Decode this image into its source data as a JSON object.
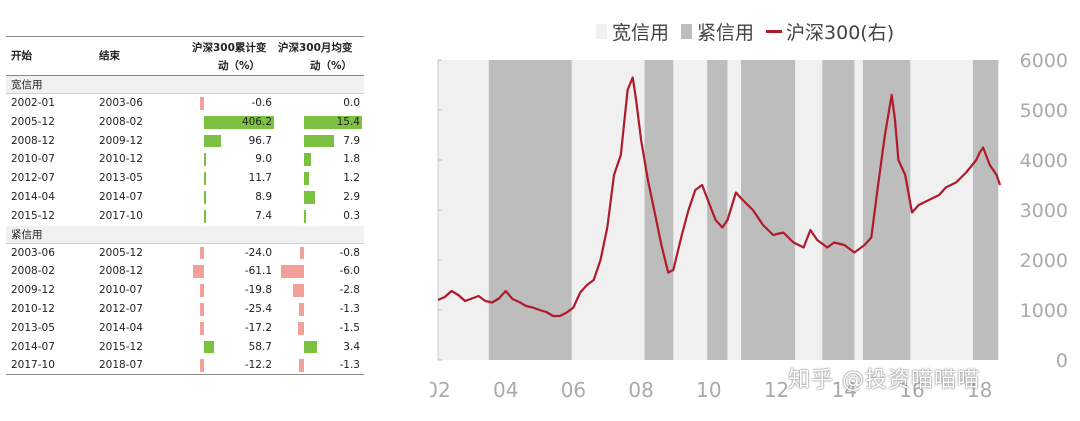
{
  "table": {
    "headers": {
      "start": "开始",
      "end": "结束",
      "cum_change_l1": "沪深300累计变",
      "cum_change_l2": "动（%）",
      "monthly_change_l1": "沪深300月均变",
      "monthly_change_l2": "动（%）"
    },
    "sections": [
      {
        "label": "宽信用",
        "rows": [
          {
            "start": "2002-01",
            "end": "2003-06",
            "cum": "-0.6",
            "cum_v": -0.6,
            "mon": "0.0",
            "mon_v": 0.0
          },
          {
            "start": "2005-12",
            "end": "2008-02",
            "cum": "406.2",
            "cum_v": 406.2,
            "mon": "15.4",
            "mon_v": 15.4
          },
          {
            "start": "2008-12",
            "end": "2009-12",
            "cum": "96.7",
            "cum_v": 96.7,
            "mon": "7.9",
            "mon_v": 7.9
          },
          {
            "start": "2010-07",
            "end": "2010-12",
            "cum": "9.0",
            "cum_v": 9.0,
            "mon": "1.8",
            "mon_v": 1.8
          },
          {
            "start": "2012-07",
            "end": "2013-05",
            "cum": "11.7",
            "cum_v": 11.7,
            "mon": "1.2",
            "mon_v": 1.2
          },
          {
            "start": "2014-04",
            "end": "2014-07",
            "cum": "8.9",
            "cum_v": 8.9,
            "mon": "2.9",
            "mon_v": 2.9
          },
          {
            "start": "2015-12",
            "end": "2017-10",
            "cum": "7.4",
            "cum_v": 7.4,
            "mon": "0.3",
            "mon_v": 0.3
          }
        ]
      },
      {
        "label": "紧信用",
        "rows": [
          {
            "start": "2003-06",
            "end": "2005-12",
            "cum": "-24.0",
            "cum_v": -24.0,
            "mon": "-0.8",
            "mon_v": -0.8
          },
          {
            "start": "2008-02",
            "end": "2008-12",
            "cum": "-61.1",
            "cum_v": -61.1,
            "mon": "-6.0",
            "mon_v": -6.0
          },
          {
            "start": "2009-12",
            "end": "2010-07",
            "cum": "-19.8",
            "cum_v": -19.8,
            "mon": "-2.8",
            "mon_v": -2.8
          },
          {
            "start": "2010-12",
            "end": "2012-07",
            "cum": "-25.4",
            "cum_v": -25.4,
            "mon": "-1.3",
            "mon_v": -1.3
          },
          {
            "start": "2013-05",
            "end": "2014-04",
            "cum": "-17.2",
            "cum_v": -17.2,
            "mon": "-1.5",
            "mon_v": -1.5
          },
          {
            "start": "2014-07",
            "end": "2015-12",
            "cum": "58.7",
            "cum_v": 58.7,
            "mon": "3.4",
            "mon_v": 3.4
          },
          {
            "start": "2017-10",
            "end": "2018-07",
            "cum": "-12.2",
            "cum_v": -12.2,
            "mon": "-1.3",
            "mon_v": -1.3
          }
        ]
      }
    ],
    "colors": {
      "positive": "#7dc142",
      "negative": "#f2a09a"
    }
  },
  "chart_data": {
    "type": "line",
    "legend": [
      "宽信用",
      "紧信用",
      "沪深300(右)"
    ],
    "legend_placement": "top",
    "y_right": {
      "ylim": [
        0,
        6000
      ],
      "ticks": [
        "0",
        "1000",
        "2000",
        "3000",
        "4000",
        "5000",
        "6000"
      ]
    },
    "x_ticks": [
      "02",
      "04",
      "06",
      "08",
      "10",
      "12",
      "14",
      "16",
      "18"
    ],
    "x_range": [
      2002.0,
      2018.6
    ],
    "loose_periods": [
      [
        2002.0,
        2003.5
      ],
      [
        2005.95,
        2008.1
      ],
      [
        2008.95,
        2009.95
      ],
      [
        2010.55,
        2010.95
      ],
      [
        2012.55,
        2013.35
      ],
      [
        2014.3,
        2014.55
      ],
      [
        2015.95,
        2017.8
      ]
    ],
    "tight_periods": [
      [
        2003.5,
        2005.95
      ],
      [
        2008.1,
        2008.95
      ],
      [
        2009.95,
        2010.55
      ],
      [
        2010.95,
        2012.55
      ],
      [
        2013.35,
        2014.3
      ],
      [
        2014.55,
        2015.95
      ],
      [
        2017.8,
        2018.55
      ]
    ],
    "series": [
      {
        "name": "沪深300(右)",
        "x": [
          2002.0,
          2002.2,
          2002.4,
          2002.6,
          2002.8,
          2003.0,
          2003.2,
          2003.4,
          2003.6,
          2003.8,
          2004.0,
          2004.2,
          2004.4,
          2004.6,
          2004.8,
          2005.0,
          2005.2,
          2005.4,
          2005.6,
          2005.8,
          2006.0,
          2006.2,
          2006.4,
          2006.6,
          2006.8,
          2007.0,
          2007.2,
          2007.4,
          2007.6,
          2007.75,
          2007.85,
          2008.0,
          2008.2,
          2008.4,
          2008.6,
          2008.8,
          2008.95,
          2009.2,
          2009.4,
          2009.6,
          2009.8,
          2010.0,
          2010.2,
          2010.4,
          2010.55,
          2010.8,
          2011.0,
          2011.3,
          2011.6,
          2011.9,
          2012.2,
          2012.5,
          2012.8,
          2013.0,
          2013.2,
          2013.5,
          2013.7,
          2014.0,
          2014.3,
          2014.6,
          2014.8,
          2015.0,
          2015.2,
          2015.4,
          2015.5,
          2015.6,
          2015.8,
          2016.0,
          2016.2,
          2016.5,
          2016.8,
          2017.0,
          2017.3,
          2017.6,
          2017.9,
          2018.0,
          2018.1,
          2018.3,
          2018.5,
          2018.6
        ],
        "y": [
          1200,
          1260,
          1380,
          1300,
          1180,
          1230,
          1280,
          1180,
          1150,
          1230,
          1380,
          1220,
          1160,
          1080,
          1050,
          1000,
          960,
          880,
          880,
          950,
          1050,
          1350,
          1500,
          1600,
          2000,
          2650,
          3700,
          4100,
          5400,
          5650,
          5200,
          4400,
          3600,
          2950,
          2300,
          1750,
          1800,
          2500,
          3000,
          3400,
          3500,
          3150,
          2800,
          2650,
          2800,
          3350,
          3200,
          3000,
          2700,
          2500,
          2550,
          2350,
          2250,
          2600,
          2400,
          2250,
          2350,
          2300,
          2150,
          2300,
          2450,
          3500,
          4500,
          5300,
          4800,
          4000,
          3700,
          2950,
          3100,
          3200,
          3300,
          3450,
          3550,
          3750,
          4000,
          4150,
          4250,
          3900,
          3700,
          3500
        ]
      }
    ],
    "colors": {
      "loose": "#f0f0f0",
      "tight": "#bdbdbd",
      "line": "#b01a2b",
      "tick": "#aaaaaa"
    }
  },
  "watermark": "知乎 @投资喵喵喵"
}
